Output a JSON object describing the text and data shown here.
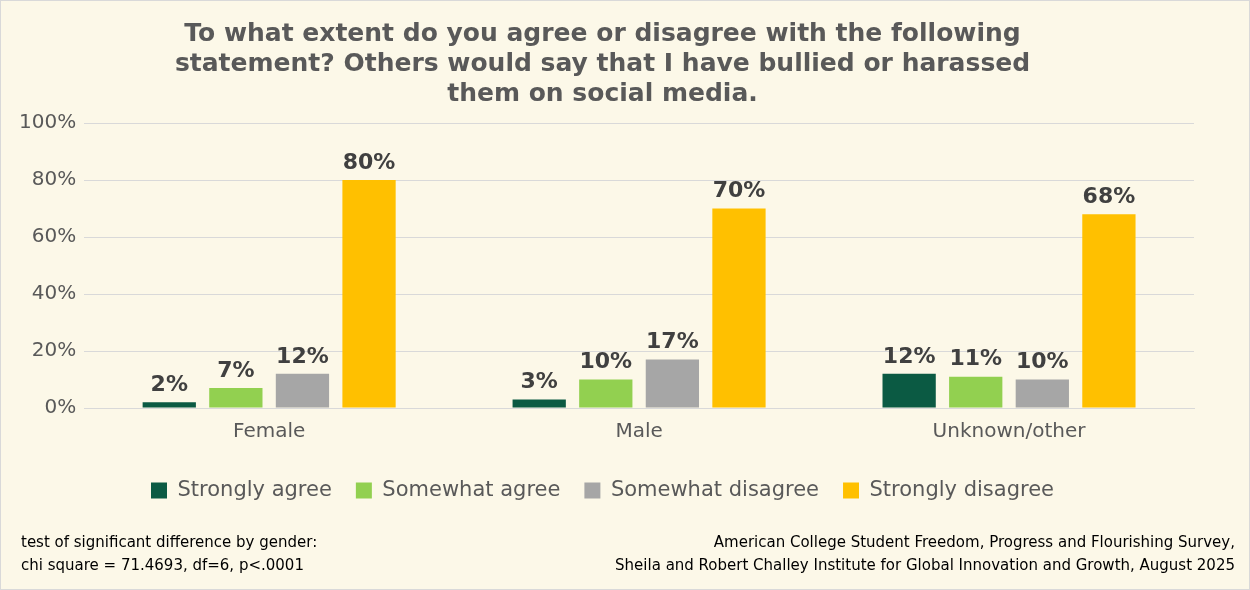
{
  "chart_data": {
    "type": "bar",
    "title": "To what extent do you agree or disagree with the following statement? Others would say that I have bullied or harassed them on social media.",
    "categories": [
      "Female",
      "Male",
      "Unknown/other"
    ],
    "series": [
      {
        "name": "Strongly agree",
        "color": "#0b5a43",
        "values": [
          2,
          3,
          12
        ],
        "value_labels": [
          "2%",
          "3%",
          "12%"
        ]
      },
      {
        "name": "Somewhat agree",
        "color": "#92d050",
        "values": [
          7,
          10,
          11
        ],
        "value_labels": [
          "7%",
          "10%",
          "11%"
        ]
      },
      {
        "name": "Somewhat disagree",
        "color": "#a6a6a6",
        "values": [
          12,
          17,
          10
        ],
        "value_labels": [
          "12%",
          "17%",
          "10%"
        ]
      },
      {
        "name": "Strongly disagree",
        "color": "#ffc000",
        "values": [
          80,
          70,
          68
        ],
        "value_labels": [
          "80%",
          "70%",
          "68%"
        ]
      }
    ],
    "ylim": [
      0,
      100
    ],
    "yticks": [
      {
        "value": 0,
        "label": "0%"
      },
      {
        "value": 20,
        "label": "20%"
      },
      {
        "value": 40,
        "label": "40%"
      },
      {
        "value": 60,
        "label": "60%"
      },
      {
        "value": 80,
        "label": "80%"
      },
      {
        "value": 100,
        "label": "100%"
      }
    ],
    "grid": "y",
    "legend": "bottom",
    "annotations": [
      "test of significant difference by gender:\nchi square = 71.4693, df=6, p<.0001",
      "American College Student Freedom, Progress and Flourishing Survey,\nSheila and Robert Challey Institute for Global Innovation and Growth, August 2025"
    ]
  }
}
